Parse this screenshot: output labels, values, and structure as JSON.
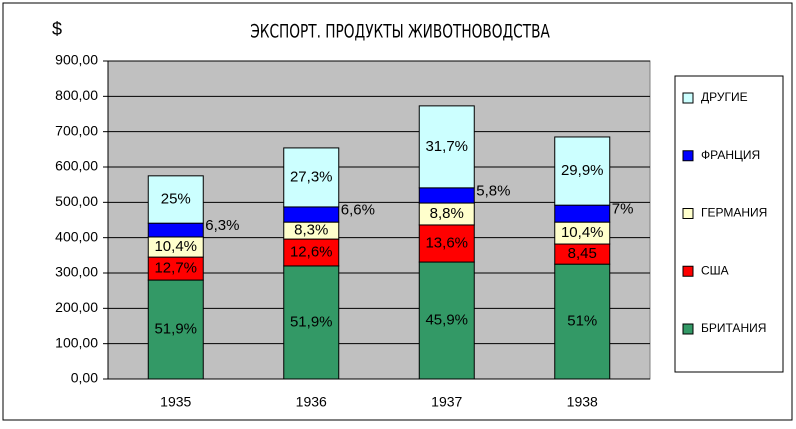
{
  "chart_data": {
    "type": "stacked_bar",
    "title": "ЭКСПОРТ. ПРОДУКТЫ ЖИВОТНОВОДСТВА",
    "y_label": "$",
    "categories": [
      "1935",
      "1936",
      "1937",
      "1938"
    ],
    "series": [
      {
        "name": "БРИТАНИЯ",
        "color": "#339966",
        "values": [
          280,
          320,
          331,
          325
        ],
        "value_labels": [
          "51,9%",
          "51,9%",
          "45,9%",
          "51%"
        ]
      },
      {
        "name": "США",
        "color": "#ff0000",
        "values": [
          65,
          76,
          105,
          57
        ],
        "value_labels": [
          "12,7%",
          "12,6%",
          "13,6%",
          "8,45"
        ]
      },
      {
        "name": "ГЕРМАНИЯ",
        "color": "#ffffcc",
        "values": [
          57,
          48,
          62,
          62
        ],
        "value_labels": [
          "10,4%",
          "8,3%",
          "8,8%",
          "10,4%"
        ]
      },
      {
        "name": "ФРАНЦИЯ",
        "color": "#0000ff",
        "values": [
          39,
          43,
          43,
          48
        ],
        "value_labels": [
          "6,3%",
          "6,6%",
          "5,8%",
          "7%"
        ]
      },
      {
        "name": "ДРУГИЕ",
        "color": "#ccffff",
        "values": [
          134,
          167,
          232,
          193
        ],
        "value_labels": [
          "25%",
          "27,3%",
          "31,7%",
          "29,9%"
        ]
      }
    ],
    "ylim": [
      0,
      900
    ],
    "yticks": [
      {
        "value": 0,
        "label": "0,00"
      },
      {
        "value": 100,
        "label": "100,00"
      },
      {
        "value": 200,
        "label": "200,00"
      },
      {
        "value": 300,
        "label": "300,00"
      },
      {
        "value": 400,
        "label": "400,00"
      },
      {
        "value": 500,
        "label": "500,00"
      },
      {
        "value": 600,
        "label": "600,00"
      },
      {
        "value": 700,
        "label": "700,00"
      },
      {
        "value": 800,
        "label": "800,00"
      },
      {
        "value": 900,
        "label": "900,00"
      }
    ],
    "grid": true,
    "legend": "right"
  }
}
